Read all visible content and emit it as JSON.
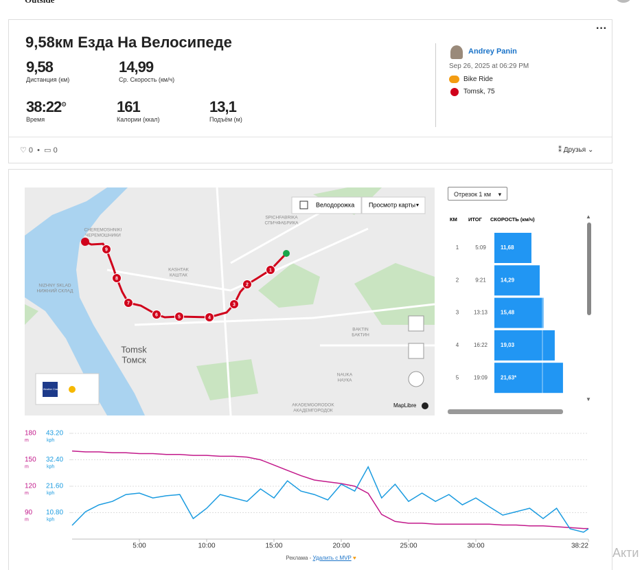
{
  "header": {
    "brand": "Outside"
  },
  "activity": {
    "title": "9,58км Езда На Велосипеде",
    "stats": [
      {
        "value": "9,58",
        "label": "Дистанция (км)"
      },
      {
        "value": "14,99",
        "label": "Ср. Скорость (км/ч)"
      },
      {
        "value": "38:22",
        "label": "Время"
      },
      {
        "value": "161",
        "label": "Калории (ккал)"
      },
      {
        "value": "13,1",
        "label": "Подъём (м)"
      }
    ],
    "athlete": "Andrey Panin",
    "date": "Sep 26, 2025 at 06:29 PM",
    "activity_type": "Bike Ride",
    "location": "Tomsk, 75",
    "likes": "0",
    "comments": "0",
    "visibility": "Друзья"
  },
  "map": {
    "bike_lanes": "Велодорожка",
    "view": "Просмотр карты",
    "labels": [
      [
        "CHEREMOSHNIKI",
        "ЧЕРЕМОШНИКИ"
      ],
      [
        "KASHTAK",
        "КАШТАК"
      ],
      [
        "SPICHFABRIKA",
        "СПИЧФАБРИКА"
      ],
      [
        "NIZHNY SKLAD",
        "НИЖНИЙ СКЛАД"
      ],
      [
        "Tomsk",
        "Томск"
      ],
      [
        "BAKTIN",
        "БАКТИН"
      ],
      [
        "NAUKA",
        "НАУКА"
      ],
      [
        "AKADEMGORODOK",
        "АКАДЕМГОРОДОК"
      ]
    ],
    "markers": [
      "1",
      "2",
      "3",
      "4",
      "5",
      "6",
      "7",
      "8",
      "9"
    ],
    "attribution": "MapLibre",
    "weather": "The Weather Channel"
  },
  "splits": {
    "selector": "Отрезок 1 км",
    "columns": [
      "КМ",
      "ИТОГ",
      "СКОРОСТЬ (км/ч)"
    ],
    "rows": [
      {
        "km": 1,
        "total": "5:09",
        "speed": 11.68,
        "speed_label": "11,68"
      },
      {
        "km": 2,
        "total": "9:21",
        "speed": 14.29,
        "speed_label": "14,29"
      },
      {
        "km": 3,
        "total": "13:13",
        "speed": 15.48,
        "speed_label": "15,48"
      },
      {
        "km": 4,
        "total": "16:22",
        "speed": 19.03,
        "speed_label": "19,03"
      },
      {
        "km": 5,
        "total": "19:09",
        "speed": 21.63,
        "speed_label": "21,63*"
      }
    ]
  },
  "chart_data": {
    "type": "line",
    "x": [
      0,
      60,
      120,
      180,
      240,
      300,
      360,
      420,
      480,
      540,
      600,
      660,
      720,
      780,
      840,
      900,
      960,
      1020,
      1080,
      1140,
      1200,
      1260,
      1320,
      1380,
      1440,
      1500,
      1560,
      1620,
      1680,
      1740,
      1800,
      1860,
      1920,
      1980,
      2040,
      2100,
      2160,
      2220,
      2280,
      2302
    ],
    "xlim": [
      0,
      2302
    ],
    "xticks": [
      {
        "value": 300,
        "label": "5:00"
      },
      {
        "value": 600,
        "label": "10:00"
      },
      {
        "value": 900,
        "label": "15:00"
      },
      {
        "value": 1200,
        "label": "20:00"
      },
      {
        "value": 1500,
        "label": "25:00"
      },
      {
        "value": 1800,
        "label": "30:00"
      },
      {
        "value": 2302,
        "label": "38:22"
      }
    ],
    "ylim": [
      60,
      180
    ],
    "yticks": [
      90,
      120,
      150,
      180
    ],
    "y_unit": "m",
    "y2lim": [
      0,
      43.2
    ],
    "y2ticks": [
      {
        "value": 10.8,
        "label": "10.80"
      },
      {
        "value": 21.6,
        "label": "21.60"
      },
      {
        "value": 32.4,
        "label": "32.40"
      },
      {
        "value": 43.2,
        "label": "43.20"
      }
    ],
    "y2_unit": "kph",
    "series": [
      {
        "color": "#c2188a",
        "values": [
          160,
          159,
          159,
          158,
          158,
          157,
          157,
          156,
          156,
          155,
          155,
          154,
          154,
          153,
          150,
          144,
          138,
          132,
          127,
          125,
          123,
          120,
          112,
          88,
          80,
          78,
          78,
          77,
          77,
          77,
          77,
          77,
          76,
          76,
          75,
          75,
          74,
          73,
          72,
          72
        ]
      },
      {
        "color": "#1a9be0",
        "axis": "y2",
        "values": [
          5.6,
          11.2,
          14,
          15.4,
          18.2,
          18.8,
          16.8,
          17.7,
          18.2,
          8.4,
          12.6,
          18.2,
          16.8,
          15.4,
          20.5,
          16.8,
          23.8,
          19.6,
          18.2,
          16,
          22.4,
          19.6,
          29.5,
          16.8,
          22.4,
          15.4,
          18.8,
          15.4,
          18.2,
          14,
          16.8,
          13.2,
          9.8,
          11.2,
          12.6,
          8.4,
          12.6,
          4.2,
          2.8,
          4.2
        ]
      }
    ]
  },
  "footer": {
    "ad": "Реклама -",
    "remove": "Удалить с MVP",
    "watermark": "Акти"
  }
}
